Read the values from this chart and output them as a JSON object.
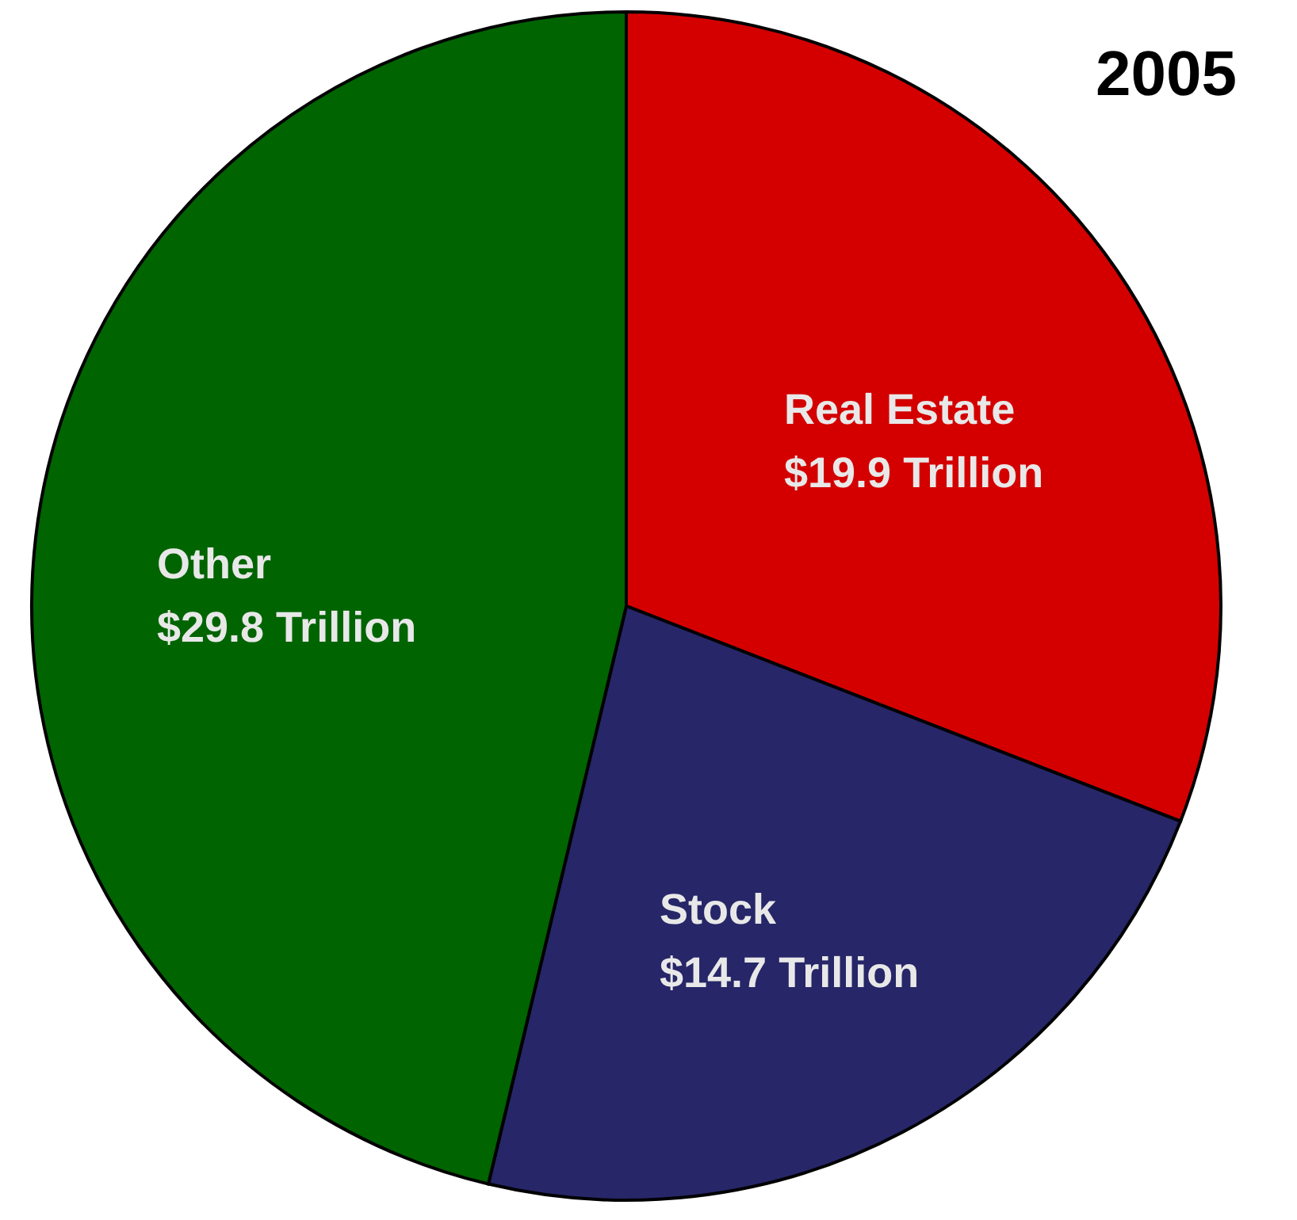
{
  "chart_data": {
    "type": "pie",
    "title": "2005",
    "categories": [
      "Real Estate",
      "Stock",
      "Other"
    ],
    "values": [
      19.9,
      14.7,
      29.8
    ],
    "value_labels": [
      "$19.9 Trillion",
      "$14.7 Trillion",
      "$29.8 Trillion"
    ],
    "colors": [
      "#d40000",
      "#262668",
      "#006400"
    ],
    "legend": false
  }
}
